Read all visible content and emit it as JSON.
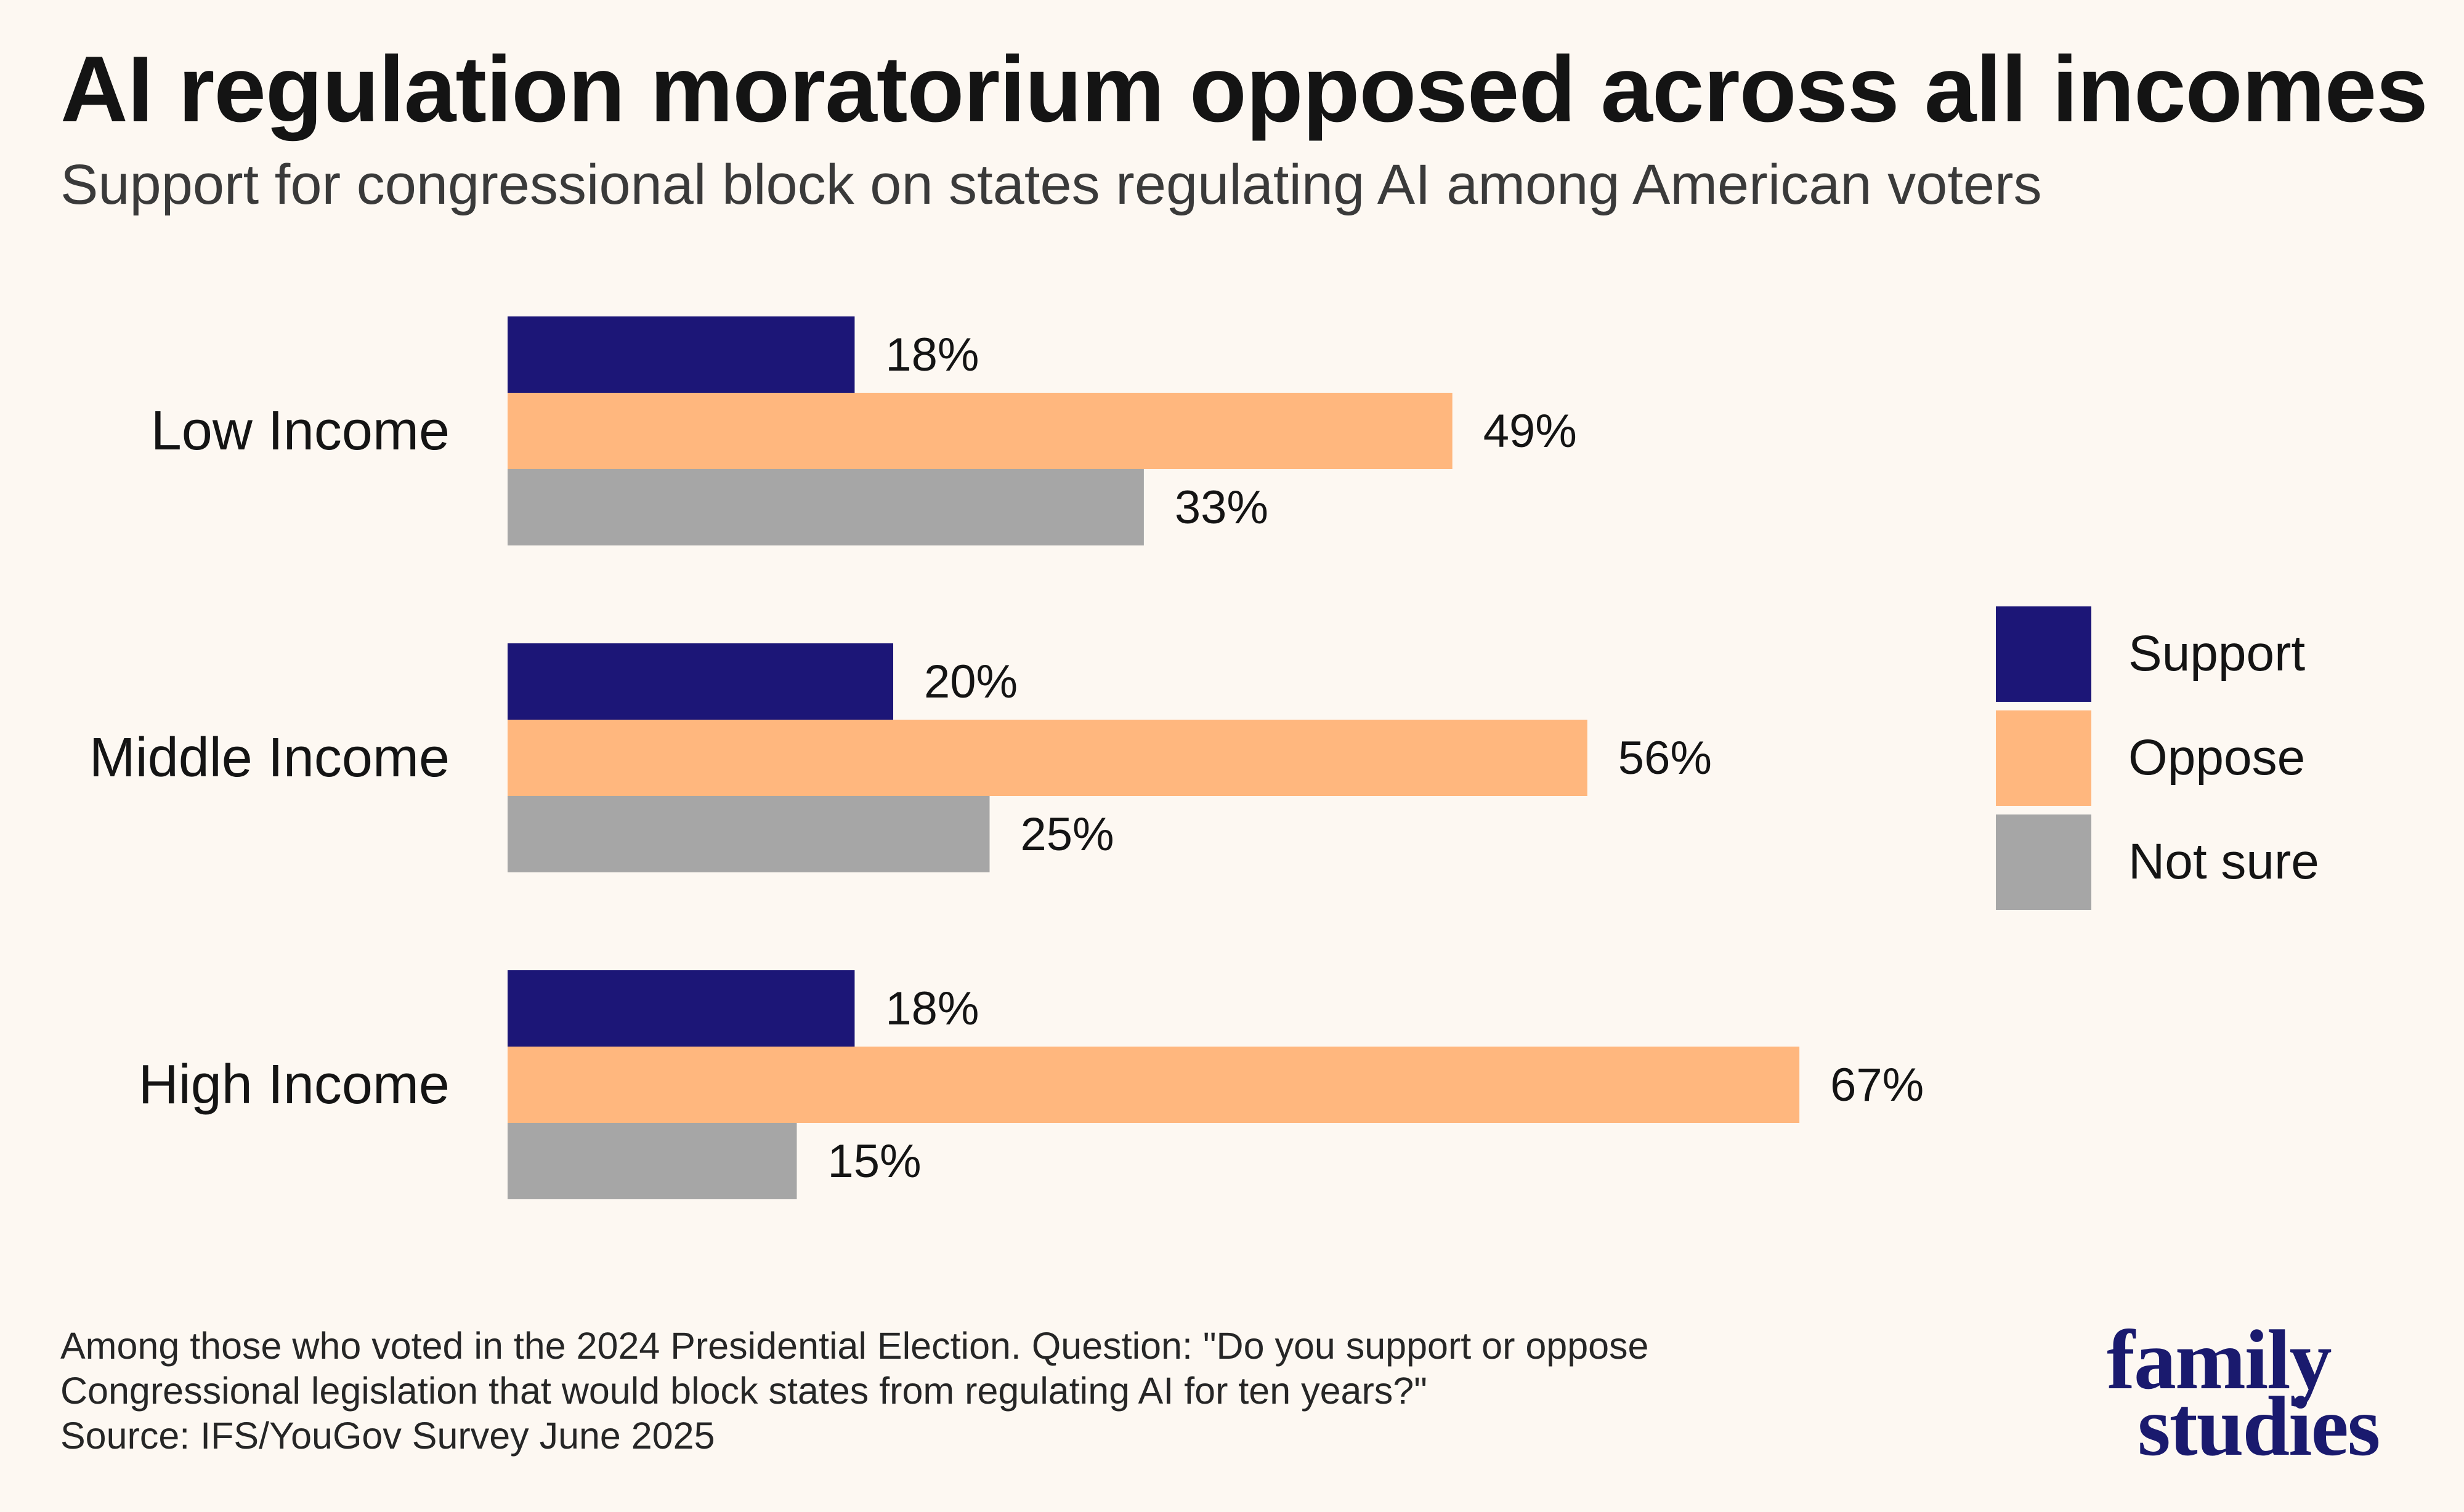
{
  "title": "AI regulation moratorium opposed across all incomes",
  "subtitle": "Support for congressional block on states regulating AI among American voters",
  "chart_data": {
    "type": "bar",
    "orientation": "horizontal",
    "categories": [
      "Low Income",
      "Middle Income",
      "High Income"
    ],
    "series": [
      {
        "name": "Support",
        "color": "#1c1677",
        "values": [
          18,
          20,
          18
        ]
      },
      {
        "name": "Oppose",
        "color": "#ffb77e",
        "values": [
          49,
          56,
          67
        ]
      },
      {
        "name": "Not sure",
        "color": "#a6a6a6",
        "values": [
          33,
          25,
          15
        ]
      }
    ],
    "value_suffix": "%",
    "xlim": [
      0,
      100
    ],
    "grid": false,
    "legend_position": "right"
  },
  "legend": {
    "items": [
      {
        "label": "Support",
        "color": "#1c1677"
      },
      {
        "label": "Oppose",
        "color": "#ffb77e"
      },
      {
        "label": "Not sure",
        "color": "#a6a6a6"
      }
    ]
  },
  "footnote": {
    "lines": [
      "Among those who voted in the 2024 Presidential Election. Question: \"Do you support or oppose",
      "Congressional legislation that would block states from regulating AI for ten years?\"",
      "Source: IFS/YouGov Survey June 2025"
    ]
  },
  "logo": {
    "line1": "family",
    "line2": "studies"
  }
}
